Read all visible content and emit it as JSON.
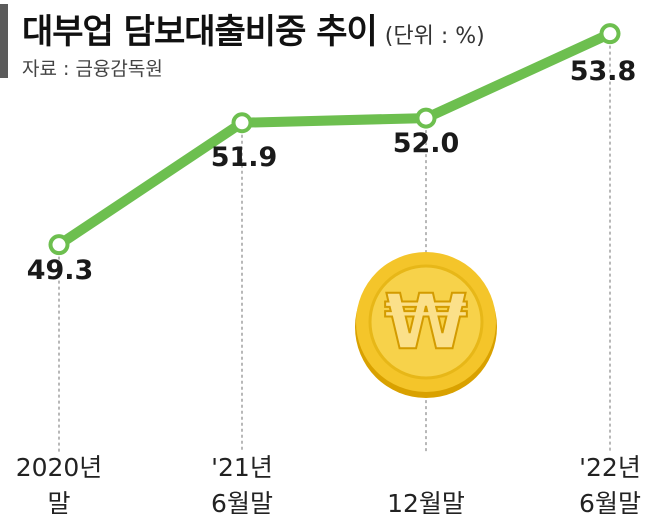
{
  "header": {
    "title": "대부업 담보대출비중 추이",
    "unit": "(단위 : %)",
    "source": "자료 : 금융감독원"
  },
  "colors": {
    "line": "#6dbf4f",
    "marker_stroke": "#6dbf4f",
    "marker_fill": "#ffffff",
    "coin": "#f2c21a"
  },
  "chart_data": {
    "type": "line",
    "title": "대부업 담보대출비중 추이",
    "categories": [
      [
        "2020년",
        "말"
      ],
      [
        "'21년",
        "6월말"
      ],
      [
        "",
        "12월말"
      ],
      [
        "'22년",
        "6월말"
      ]
    ],
    "series": [
      {
        "values": [
          49.3,
          51.9,
          52.0,
          53.8
        ]
      }
    ],
    "value_labels": [
      "49.3",
      "51.9",
      "52.0",
      "53.8"
    ],
    "ylim": [
      47.8,
      55.0
    ],
    "grid": "vertical-dashed",
    "legend": "none"
  },
  "decoration": {
    "coin_icon": "won-coin-icon",
    "coin_symbol": "₩"
  }
}
